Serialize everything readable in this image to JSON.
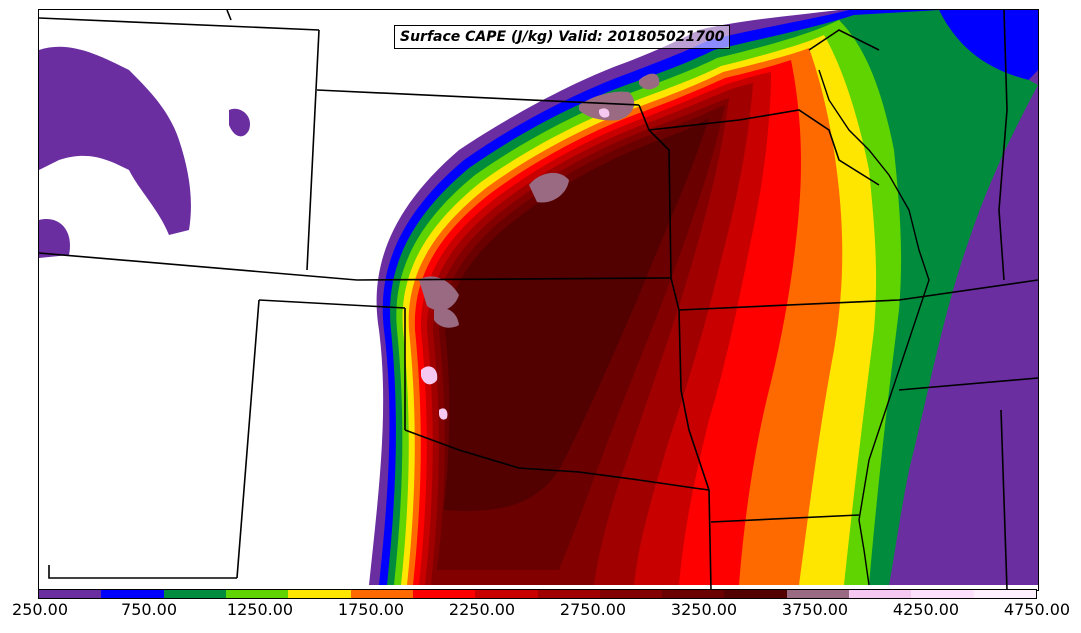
{
  "title": "Surface CAPE (J/kg) Valid: 201805021700",
  "colorbar": {
    "colors": [
      "#6a2ea0",
      "#0000ff",
      "#008c3c",
      "#5fd400",
      "#ffe600",
      "#ff6a00",
      "#ff0000",
      "#c80000",
      "#a00000",
      "#820000",
      "#6a0000",
      "#520000",
      "#9a6a82",
      "#f4c8f0",
      "#fde0fb",
      "#fff0fd"
    ],
    "labels": [
      "250.00",
      "750.00",
      "1250.00",
      "1750.00",
      "2250.00",
      "2750.00",
      "3250.00",
      "3750.00",
      "4250.00",
      "4750.00"
    ]
  }
}
